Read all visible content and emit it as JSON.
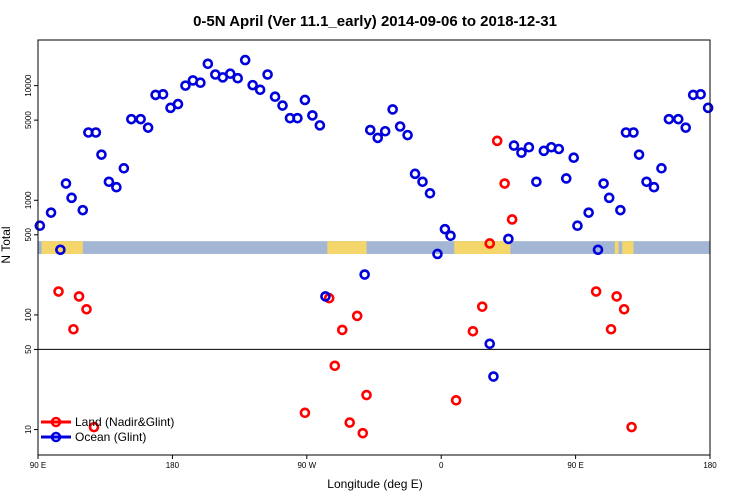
{
  "chart_data": {
    "type": "scatter",
    "title": "0-5N April (Ver 11.1_early)   2014-09-06 to 2018-12-31",
    "xlabel": "Longitude (deg E)",
    "ylabel": "N Total",
    "y_scale": "log",
    "xlim": [
      0,
      360
    ],
    "ylim": [
      6,
      25000
    ],
    "x_ticks": [
      {
        "x": 0,
        "label": "90 E"
      },
      {
        "x": 72,
        "label": "180"
      },
      {
        "x": 144,
        "label": "90 W"
      },
      {
        "x": 216,
        "label": "0"
      },
      {
        "x": 288,
        "label": "90 E"
      },
      {
        "x": 360,
        "label": "180"
      }
    ],
    "y_ticks": [
      {
        "y": 10,
        "label": "10"
      },
      {
        "y": 50,
        "label": "50"
      },
      {
        "y": 100,
        "label": "100"
      },
      {
        "y": 500,
        "label": "500"
      },
      {
        "y": 1000,
        "label": "1000"
      },
      {
        "y": 5000,
        "label": "5000"
      },
      {
        "y": 10000,
        "label": "10000"
      }
    ],
    "reference_line": 50,
    "map_band": {
      "y_range": [
        340,
        440
      ],
      "ocean_color": "#a3b7d4",
      "land_color": "#f5d66b",
      "land_segments": [
        [
          2,
          24
        ],
        [
          155,
          176
        ],
        [
          223,
          253
        ],
        [
          309,
          311
        ],
        [
          313,
          319
        ]
      ]
    },
    "legend": {
      "position": "bottom-left"
    },
    "series": [
      {
        "name": "Land (Nadir&Glint)",
        "color": "#ff0000",
        "points": [
          {
            "x": 11,
            "y": 160
          },
          {
            "x": 19,
            "y": 75
          },
          {
            "x": 22,
            "y": 145
          },
          {
            "x": 26,
            "y": 112
          },
          {
            "x": 30,
            "y": 10.5
          },
          {
            "x": 143,
            "y": 14
          },
          {
            "x": 156,
            "y": 140
          },
          {
            "x": 159,
            "y": 36
          },
          {
            "x": 163,
            "y": 74
          },
          {
            "x": 167,
            "y": 11.5
          },
          {
            "x": 171,
            "y": 98
          },
          {
            "x": 174,
            "y": 9.3
          },
          {
            "x": 176,
            "y": 20
          },
          {
            "x": 224,
            "y": 18
          },
          {
            "x": 233,
            "y": 72
          },
          {
            "x": 238,
            "y": 118
          },
          {
            "x": 242,
            "y": 420
          },
          {
            "x": 246,
            "y": 3300
          },
          {
            "x": 250,
            "y": 1400
          },
          {
            "x": 254,
            "y": 680
          },
          {
            "x": 299,
            "y": 160
          },
          {
            "x": 307,
            "y": 75
          },
          {
            "x": 310,
            "y": 145
          },
          {
            "x": 314,
            "y": 112
          },
          {
            "x": 318,
            "y": 10.5
          }
        ]
      },
      {
        "name": "Ocean (Glint)",
        "color": "#0000dd",
        "points": [
          {
            "x": 1,
            "y": 600
          },
          {
            "x": 7,
            "y": 780
          },
          {
            "x": 12,
            "y": 370
          },
          {
            "x": 15,
            "y": 1400
          },
          {
            "x": 18,
            "y": 1050
          },
          {
            "x": 24,
            "y": 820
          },
          {
            "x": 27,
            "y": 3900
          },
          {
            "x": 31,
            "y": 3900
          },
          {
            "x": 34,
            "y": 2500
          },
          {
            "x": 38,
            "y": 1450
          },
          {
            "x": 42,
            "y": 1300
          },
          {
            "x": 46,
            "y": 1900
          },
          {
            "x": 50,
            "y": 5100
          },
          {
            "x": 55,
            "y": 5100
          },
          {
            "x": 59,
            "y": 4300
          },
          {
            "x": 63,
            "y": 8300
          },
          {
            "x": 67,
            "y": 8400
          },
          {
            "x": 71,
            "y": 6400
          },
          {
            "x": 75,
            "y": 6900
          },
          {
            "x": 79,
            "y": 10000
          },
          {
            "x": 83,
            "y": 11100
          },
          {
            "x": 87,
            "y": 10600
          },
          {
            "x": 91,
            "y": 15500
          },
          {
            "x": 95,
            "y": 12500
          },
          {
            "x": 99,
            "y": 11800
          },
          {
            "x": 103,
            "y": 12700
          },
          {
            "x": 107,
            "y": 11600
          },
          {
            "x": 111,
            "y": 16700
          },
          {
            "x": 115,
            "y": 10100
          },
          {
            "x": 119,
            "y": 9200
          },
          {
            "x": 123,
            "y": 12500
          },
          {
            "x": 127,
            "y": 8000
          },
          {
            "x": 131,
            "y": 6700
          },
          {
            "x": 135,
            "y": 5200
          },
          {
            "x": 139,
            "y": 5200
          },
          {
            "x": 143,
            "y": 7500
          },
          {
            "x": 147,
            "y": 5500
          },
          {
            "x": 151,
            "y": 4500
          },
          {
            "x": 154,
            "y": 145
          },
          {
            "x": 175,
            "y": 225
          },
          {
            "x": 178,
            "y": 4100
          },
          {
            "x": 182,
            "y": 3500
          },
          {
            "x": 186,
            "y": 4000
          },
          {
            "x": 190,
            "y": 6200
          },
          {
            "x": 194,
            "y": 4400
          },
          {
            "x": 198,
            "y": 3700
          },
          {
            "x": 202,
            "y": 1700
          },
          {
            "x": 206,
            "y": 1450
          },
          {
            "x": 210,
            "y": 1150
          },
          {
            "x": 214,
            "y": 340
          },
          {
            "x": 218,
            "y": 560
          },
          {
            "x": 221,
            "y": 490
          },
          {
            "x": 242,
            "y": 56
          },
          {
            "x": 244,
            "y": 29
          },
          {
            "x": 252,
            "y": 460
          },
          {
            "x": 255,
            "y": 3000
          },
          {
            "x": 259,
            "y": 2600
          },
          {
            "x": 263,
            "y": 2900
          },
          {
            "x": 267,
            "y": 1450
          },
          {
            "x": 271,
            "y": 2700
          },
          {
            "x": 275,
            "y": 2900
          },
          {
            "x": 279,
            "y": 2800
          },
          {
            "x": 283,
            "y": 1550
          },
          {
            "x": 287,
            "y": 2350
          },
          {
            "x": 289,
            "y": 600
          },
          {
            "x": 295,
            "y": 780
          },
          {
            "x": 300,
            "y": 370
          },
          {
            "x": 303,
            "y": 1400
          },
          {
            "x": 306,
            "y": 1050
          },
          {
            "x": 312,
            "y": 820
          },
          {
            "x": 315,
            "y": 3900
          },
          {
            "x": 319,
            "y": 3900
          },
          {
            "x": 322,
            "y": 2500
          },
          {
            "x": 326,
            "y": 1450
          },
          {
            "x": 330,
            "y": 1300
          },
          {
            "x": 334,
            "y": 1900
          },
          {
            "x": 338,
            "y": 5100
          },
          {
            "x": 343,
            "y": 5100
          },
          {
            "x": 347,
            "y": 4300
          },
          {
            "x": 351,
            "y": 8300
          },
          {
            "x": 355,
            "y": 8400
          },
          {
            "x": 359,
            "y": 6400
          }
        ]
      }
    ]
  }
}
